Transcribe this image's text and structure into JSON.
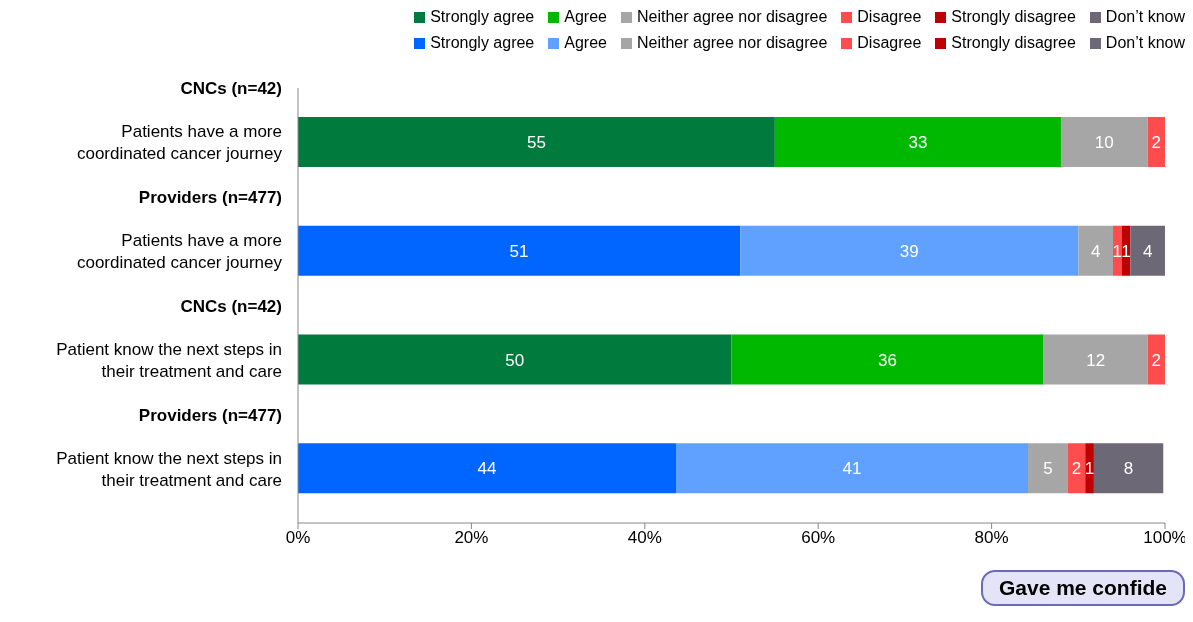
{
  "chart_data": {
    "type": "bar",
    "orientation": "horizontal",
    "stacked": true,
    "grid": false,
    "legend": "top",
    "categories": [
      "CNCs (n=42)\nPatients have a more\ncoordinated cancer journey",
      "Providers (n=477)\nPatients have a more\ncoordinated cancer journey",
      "CNCs (n=42)\nPatient know the next steps in\ntheir treatment and care",
      "Providers (n=477)\nPatient know the next steps in\ntheir treatment and care"
    ],
    "xlim": [
      0,
      100
    ],
    "xticks": [
      {
        "value": 0,
        "label": "0%"
      },
      {
        "value": 20,
        "label": "20%"
      },
      {
        "value": 40,
        "label": "40%"
      },
      {
        "value": 60,
        "label": "60%"
      },
      {
        "value": 80,
        "label": "80%"
      },
      {
        "value": 100,
        "label": "100%"
      }
    ],
    "series": [
      {
        "name": "Strongly agree",
        "color": "#007a3d",
        "values": [
          55,
          null,
          50,
          null
        ],
        "value_labels": [
          "55",
          null,
          "50",
          null
        ]
      },
      {
        "name": "Agree",
        "color": "#00b800",
        "values": [
          33,
          null,
          36,
          null
        ],
        "value_labels": [
          "33",
          null,
          "36",
          null
        ]
      },
      {
        "name": "Neither agree nor disagree",
        "color": "#a6a6a6",
        "values": [
          10,
          null,
          12,
          null
        ],
        "value_labels": [
          "10",
          null,
          "12",
          null
        ]
      },
      {
        "name": "Disagree",
        "color": "#ff4d4d",
        "values": [
          2,
          null,
          2,
          null
        ],
        "value_labels": [
          "2",
          null,
          "2",
          null
        ]
      },
      {
        "name": "Strongly disagree",
        "color": "#c00000",
        "values": [
          null,
          null,
          null,
          null
        ]
      },
      {
        "name": "Don’t know",
        "color": "#6d6875",
        "values": [
          null,
          null,
          null,
          null
        ]
      },
      {
        "name": "Strongly agree",
        "color": "#0066ff",
        "values": [
          null,
          51,
          null,
          43.6
        ],
        "value_labels": [
          null,
          "51",
          null,
          "44"
        ]
      },
      {
        "name": "Agree",
        "color": "#60a0ff",
        "values": [
          null,
          39,
          null,
          40.6
        ],
        "value_labels": [
          null,
          "39",
          null,
          "41"
        ]
      },
      {
        "name": "Neither agree nor disagree",
        "color": "#a6a6a6",
        "values": [
          null,
          4,
          null,
          4.6
        ],
        "value_labels": [
          null,
          "4",
          null,
          "5"
        ]
      },
      {
        "name": "Disagree",
        "color": "#ff4d4d",
        "values": [
          null,
          1,
          null,
          2
        ],
        "value_labels": [
          null,
          "1",
          null,
          "2"
        ]
      },
      {
        "name": "Strongly disagree",
        "color": "#c00000",
        "values": [
          null,
          1,
          null,
          1
        ],
        "value_labels": [
          null,
          "1",
          null,
          "1"
        ]
      },
      {
        "name": "Don’t know",
        "color": "#6d6875",
        "values": [
          null,
          4,
          null,
          8
        ],
        "value_labels": [
          null,
          "4",
          null,
          "8"
        ]
      }
    ],
    "annotations": [
      "Gave me confide"
    ]
  }
}
